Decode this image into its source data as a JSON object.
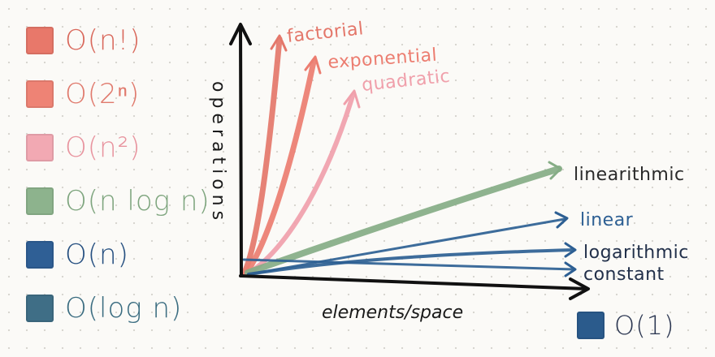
{
  "legend": [
    {
      "id": "factorial",
      "label": "O(n!)",
      "color": "#e8786a",
      "text_color": "#d9685b"
    },
    {
      "id": "exponential",
      "label": "O(2ⁿ)",
      "color": "#ee8375",
      "text_color": "#e07a6d"
    },
    {
      "id": "quadratic",
      "label": "O(n²)",
      "color": "#f2a9b3",
      "text_color": "#e8949f"
    },
    {
      "id": "linearithmic",
      "label": "O(n log n)",
      "color": "#8db38d",
      "text_color": "#7ea57e"
    },
    {
      "id": "linear",
      "label": "O(n)",
      "color": "#2f5f95",
      "text_color": "#254f80"
    },
    {
      "id": "logarithmic",
      "label": "O(log n)",
      "color": "#3f6e86",
      "text_color": "#3a6c80"
    }
  ],
  "constant_legend": {
    "label": "O(1)",
    "color": "#2b5b8c"
  },
  "axes": {
    "y_label": "operations",
    "x_label": "elements/space"
  },
  "curves": {
    "factorial": {
      "label": "factorial",
      "color": "#e4776a"
    },
    "exponential": {
      "label": "exponential",
      "color": "#ec7d70"
    },
    "quadratic": {
      "label": "quadratic",
      "color": "#f0a0ab"
    },
    "linearithmic": {
      "label": "linearithmic",
      "color": "#86ad86"
    },
    "linear": {
      "label": "linear",
      "color": "#2d5f93"
    },
    "logarithmic": {
      "label": "logarithmic",
      "color": "#2d5f93"
    },
    "constant": {
      "label": "constant",
      "color": "#2d5f93"
    }
  }
}
